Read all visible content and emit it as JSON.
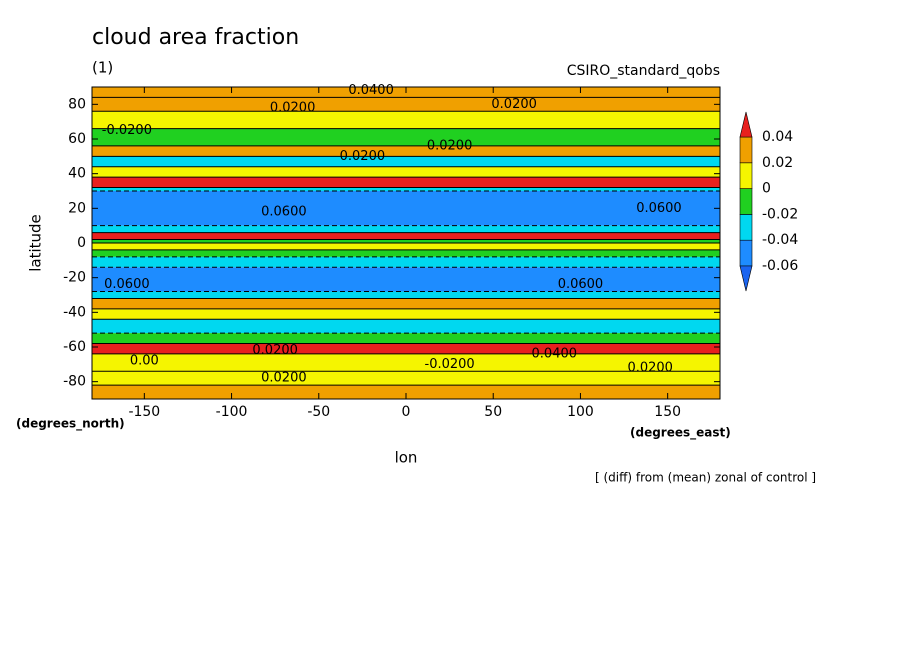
{
  "chart_data": {
    "type": "contour",
    "title": "cloud area fraction",
    "subtitle": "(1)",
    "source_label": "CSIRO_standard_qobs",
    "xlabel": "lon",
    "ylabel": "latitude",
    "x_unit_label": "(degrees_east)",
    "y_unit_label": "(degrees_north)",
    "note": "[ (diff) from (mean) zonal of control ]",
    "xlim": [
      -180,
      180
    ],
    "ylim": [
      -90,
      90
    ],
    "xticks": [
      -150,
      -100,
      -50,
      0,
      50,
      100,
      150
    ],
    "yticks": [
      -80,
      -60,
      -40,
      -20,
      0,
      20,
      40,
      60,
      80
    ],
    "levels": [
      -0.06,
      -0.04,
      -0.02,
      0,
      0.02,
      0.04
    ],
    "colors": [
      "#1a64f0",
      "#1e8cff",
      "#00d8f0",
      "#20d020",
      "#f5f500",
      "#f0a000",
      "#e8201e"
    ],
    "lat_edges": [
      90,
      84,
      76,
      66,
      56,
      50,
      44,
      38,
      32,
      30,
      10,
      6,
      2,
      0,
      -4,
      -8,
      -14,
      -28,
      -32,
      -38,
      -44,
      -52,
      -58,
      -64,
      -74,
      -82,
      -90
    ],
    "values": [
      0.03,
      0.03,
      0.01,
      -0.01,
      0.03,
      -0.03,
      0.01,
      0.05,
      -0.03,
      -0.05,
      -0.03,
      0.05,
      -0.01,
      0.01,
      -0.01,
      -0.03,
      -0.05,
      -0.03,
      0.03,
      0.01,
      -0.03,
      -0.01,
      0.05,
      0.01,
      0.01,
      0.03
    ],
    "contour_labels": [
      {
        "lon": -65,
        "lat": 78,
        "label": "0.0200"
      },
      {
        "lon": -20,
        "lat": 88,
        "label": "0.0400"
      },
      {
        "lon": 62,
        "lat": 80,
        "label": "0.0200"
      },
      {
        "lon": -160,
        "lat": 65,
        "label": "-0.0200"
      },
      {
        "lon": -25,
        "lat": 50,
        "label": "0.0200"
      },
      {
        "lon": 25,
        "lat": 56,
        "label": "0.0200"
      },
      {
        "lon": 145,
        "lat": 20,
        "label": "0.0600"
      },
      {
        "lon": -70,
        "lat": 18,
        "label": "0.0600"
      },
      {
        "lon": -160,
        "lat": -24,
        "label": "0.0600"
      },
      {
        "lon": 100,
        "lat": -24,
        "label": "0.0600"
      },
      {
        "lon": -150,
        "lat": -68,
        "label": "0.00"
      },
      {
        "lon": -75,
        "lat": -62,
        "label": "0.0200"
      },
      {
        "lon": 25,
        "lat": -70,
        "label": "-0.0200"
      },
      {
        "lon": 85,
        "lat": -64,
        "label": "0.0400"
      },
      {
        "lon": 140,
        "lat": -72,
        "label": "0.0200"
      },
      {
        "lon": -70,
        "lat": -78,
        "label": "0.0200"
      }
    ]
  }
}
